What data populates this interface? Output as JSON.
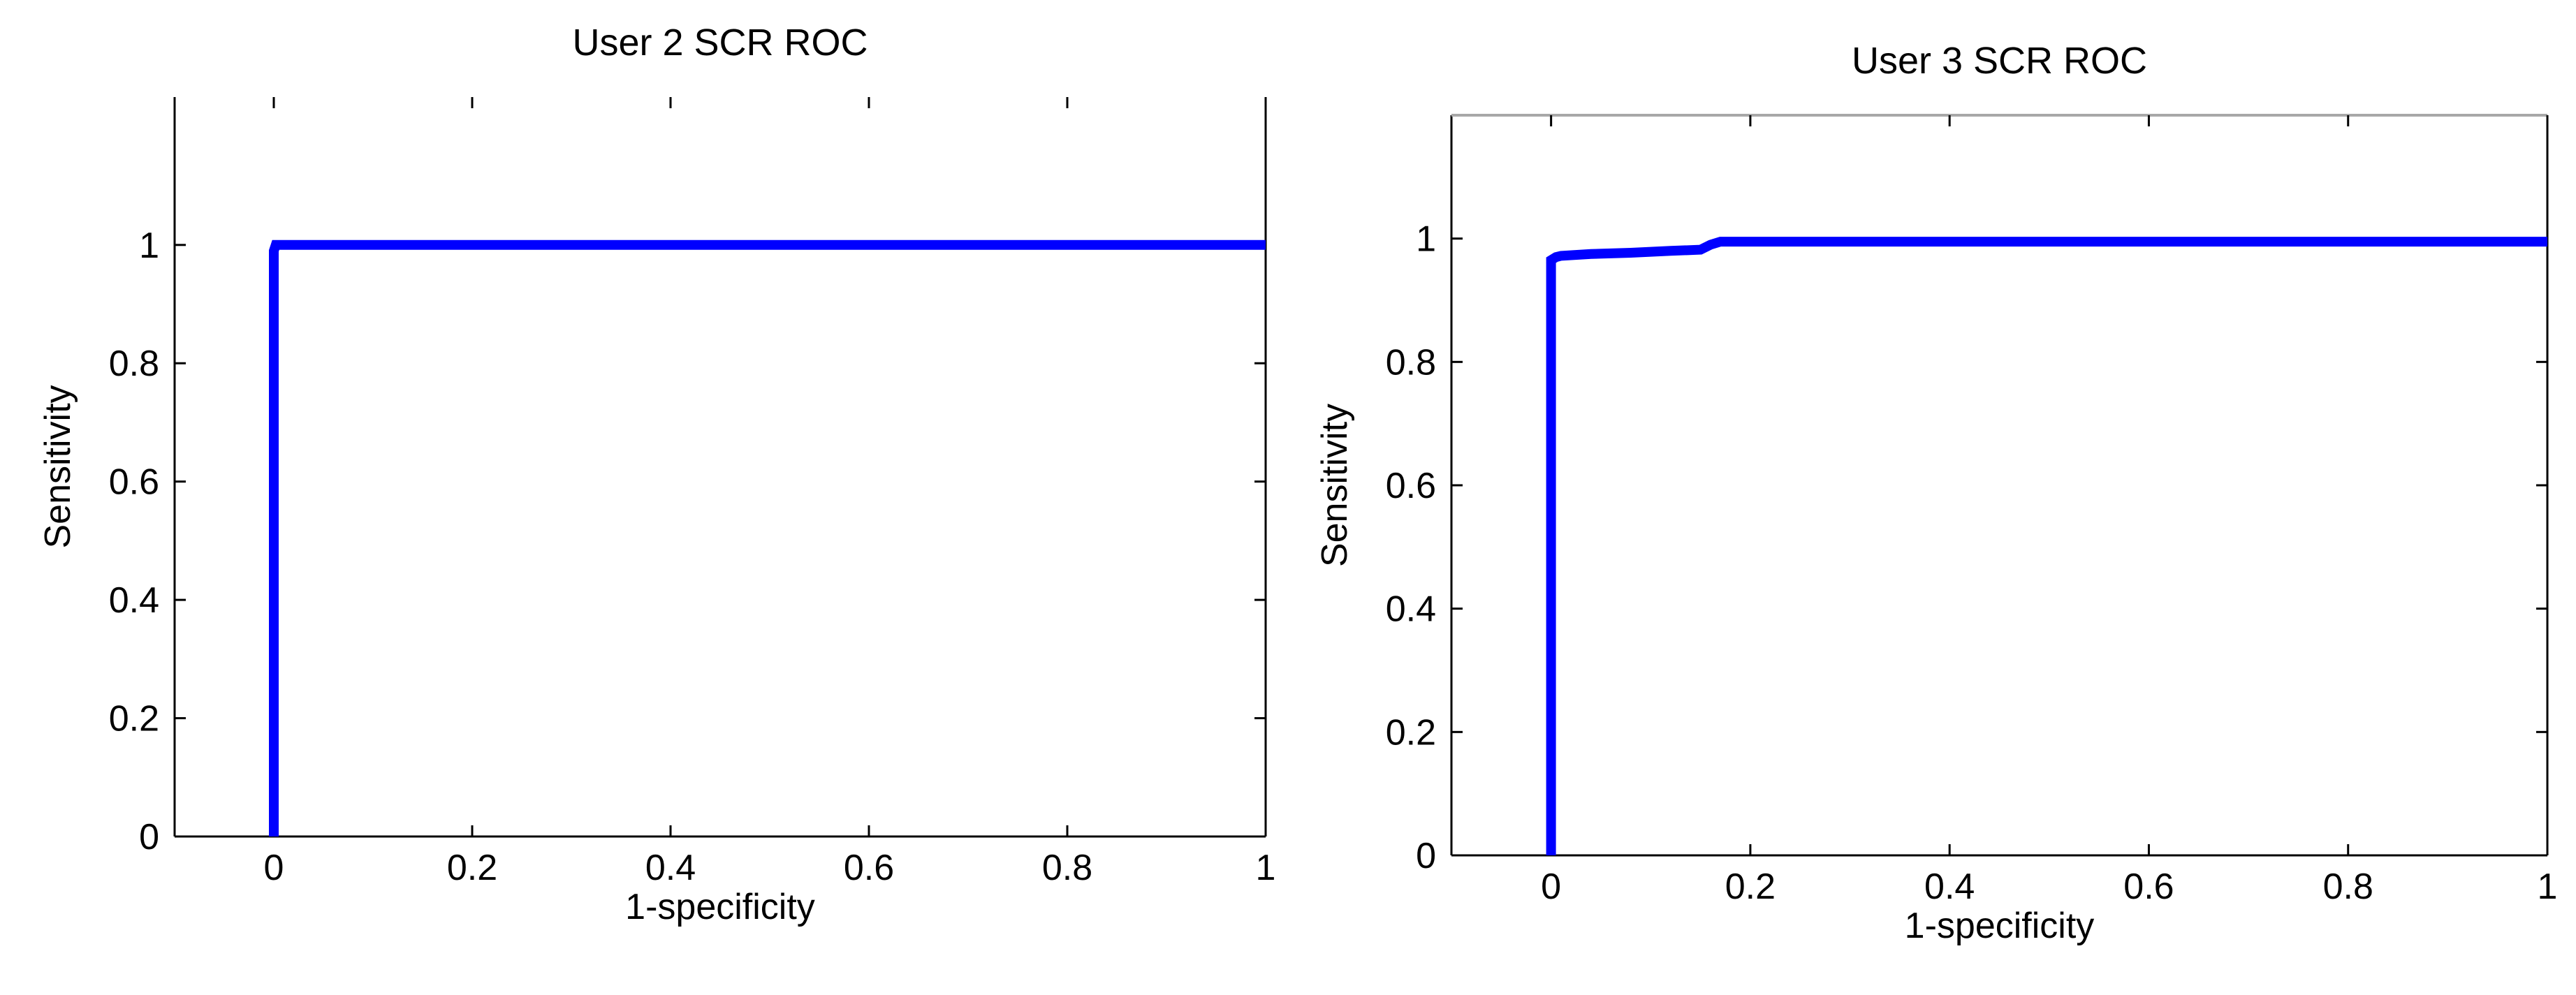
{
  "chart_data": [
    {
      "type": "line",
      "title": "User 2 SCR ROC",
      "xlabel": "1-specificity",
      "ylabel": "Sensitivity",
      "xlim": [
        -0.1,
        1
      ],
      "ylim": [
        0,
        1.25
      ],
      "xticks": [
        "0",
        "0.2",
        "0.4",
        "0.6",
        "0.8",
        "1"
      ],
      "yticks": [
        "0",
        "0.2",
        "0.4",
        "0.6",
        "0.8",
        "1"
      ],
      "grid": false,
      "series": [
        {
          "color": "#0000ff",
          "x": [
            0,
            0,
            0.002,
            1
          ],
          "y": [
            0,
            0.99,
            1,
            1
          ]
        }
      ]
    },
    {
      "type": "line",
      "title": "User 3 SCR ROC",
      "xlabel": "1-specificity",
      "ylabel": "Sensitivity",
      "xlim": [
        -0.1,
        1
      ],
      "ylim": [
        0,
        1.2
      ],
      "xticks": [
        "0",
        "0.2",
        "0.4",
        "0.6",
        "0.8",
        "1"
      ],
      "yticks": [
        "0",
        "0.2",
        "0.4",
        "0.6",
        "0.8",
        "1"
      ],
      "grid": false,
      "series": [
        {
          "color": "#0000ff",
          "x": [
            0,
            0,
            0.005,
            0.01,
            0.04,
            0.08,
            0.12,
            0.15,
            0.16,
            0.17,
            0.2,
            1
          ],
          "y": [
            0,
            0.965,
            0.97,
            0.972,
            0.975,
            0.977,
            0.98,
            0.982,
            0.99,
            0.995,
            0.995,
            0.995
          ]
        }
      ]
    }
  ]
}
